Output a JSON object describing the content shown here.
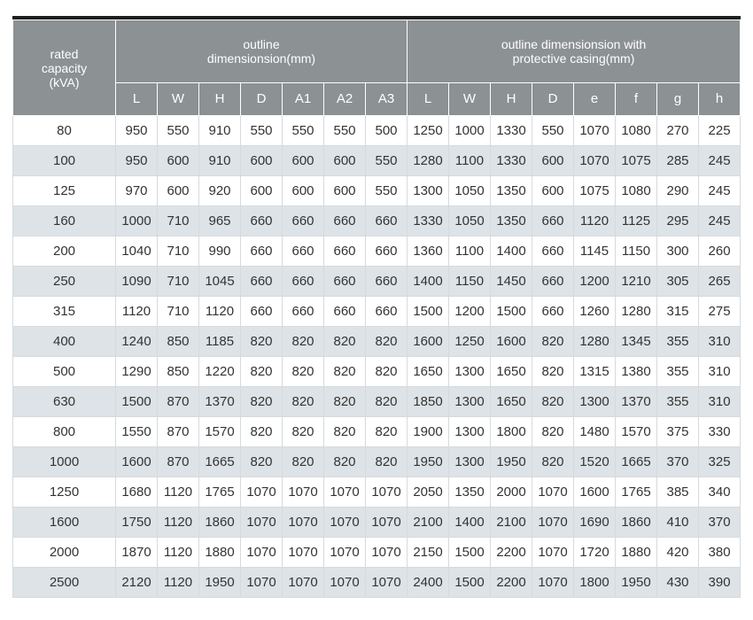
{
  "header": {
    "rated_capacity": [
      "rated",
      "capacity",
      "(kVA)"
    ],
    "group_outline": [
      "outline",
      "dimensionsion(mm)"
    ],
    "group_casing": [
      "outline dimensionsion with",
      "protective casing(mm)"
    ],
    "outline_cols": [
      "L",
      "W",
      "H",
      "D",
      "A1",
      "A2",
      "A3"
    ],
    "casing_cols": [
      "L",
      "W",
      "H",
      "D",
      "e",
      "f",
      "g",
      "h"
    ]
  },
  "rows": [
    [
      "80",
      "950",
      "550",
      "910",
      "550",
      "550",
      "550",
      "500",
      "1250",
      "1000",
      "1330",
      "550",
      "1070",
      "1080",
      "270",
      "225"
    ],
    [
      "100",
      "950",
      "600",
      "910",
      "600",
      "600",
      "600",
      "550",
      "1280",
      "1100",
      "1330",
      "600",
      "1070",
      "1075",
      "285",
      "245"
    ],
    [
      "125",
      "970",
      "600",
      "920",
      "600",
      "600",
      "600",
      "550",
      "1300",
      "1050",
      "1350",
      "600",
      "1075",
      "1080",
      "290",
      "245"
    ],
    [
      "160",
      "1000",
      "710",
      "965",
      "660",
      "660",
      "660",
      "660",
      "1330",
      "1050",
      "1350",
      "660",
      "1120",
      "1125",
      "295",
      "245"
    ],
    [
      "200",
      "1040",
      "710",
      "990",
      "660",
      "660",
      "660",
      "660",
      "1360",
      "1100",
      "1400",
      "660",
      "1145",
      "1150",
      "300",
      "260"
    ],
    [
      "250",
      "1090",
      "710",
      "1045",
      "660",
      "660",
      "660",
      "660",
      "1400",
      "1150",
      "1450",
      "660",
      "1200",
      "1210",
      "305",
      "265"
    ],
    [
      "315",
      "1120",
      "710",
      "1120",
      "660",
      "660",
      "660",
      "660",
      "1500",
      "1200",
      "1500",
      "660",
      "1260",
      "1280",
      "315",
      "275"
    ],
    [
      "400",
      "1240",
      "850",
      "1185",
      "820",
      "820",
      "820",
      "820",
      "1600",
      "1250",
      "1600",
      "820",
      "1280",
      "1345",
      "355",
      "310"
    ],
    [
      "500",
      "1290",
      "850",
      "1220",
      "820",
      "820",
      "820",
      "820",
      "1650",
      "1300",
      "1650",
      "820",
      "1315",
      "1380",
      "355",
      "310"
    ],
    [
      "630",
      "1500",
      "870",
      "1370",
      "820",
      "820",
      "820",
      "820",
      "1850",
      "1300",
      "1650",
      "820",
      "1300",
      "1370",
      "355",
      "310"
    ],
    [
      "800",
      "1550",
      "870",
      "1570",
      "820",
      "820",
      "820",
      "820",
      "1900",
      "1300",
      "1800",
      "820",
      "1480",
      "1570",
      "375",
      "330"
    ],
    [
      "1000",
      "1600",
      "870",
      "1665",
      "820",
      "820",
      "820",
      "820",
      "1950",
      "1300",
      "1950",
      "820",
      "1520",
      "1665",
      "370",
      "325"
    ],
    [
      "1250",
      "1680",
      "1120",
      "1765",
      "1070",
      "1070",
      "1070",
      "1070",
      "2050",
      "1350",
      "2000",
      "1070",
      "1600",
      "1765",
      "385",
      "340"
    ],
    [
      "1600",
      "1750",
      "1120",
      "1860",
      "1070",
      "1070",
      "1070",
      "1070",
      "2100",
      "1400",
      "2100",
      "1070",
      "1690",
      "1860",
      "410",
      "370"
    ],
    [
      "2000",
      "1870",
      "1120",
      "1880",
      "1070",
      "1070",
      "1070",
      "1070",
      "2150",
      "1500",
      "2200",
      "1070",
      "1720",
      "1880",
      "420",
      "380"
    ],
    [
      "2500",
      "2120",
      "1120",
      "1950",
      "1070",
      "1070",
      "1070",
      "1070",
      "2400",
      "1500",
      "2200",
      "1070",
      "1800",
      "1950",
      "430",
      "390"
    ]
  ]
}
